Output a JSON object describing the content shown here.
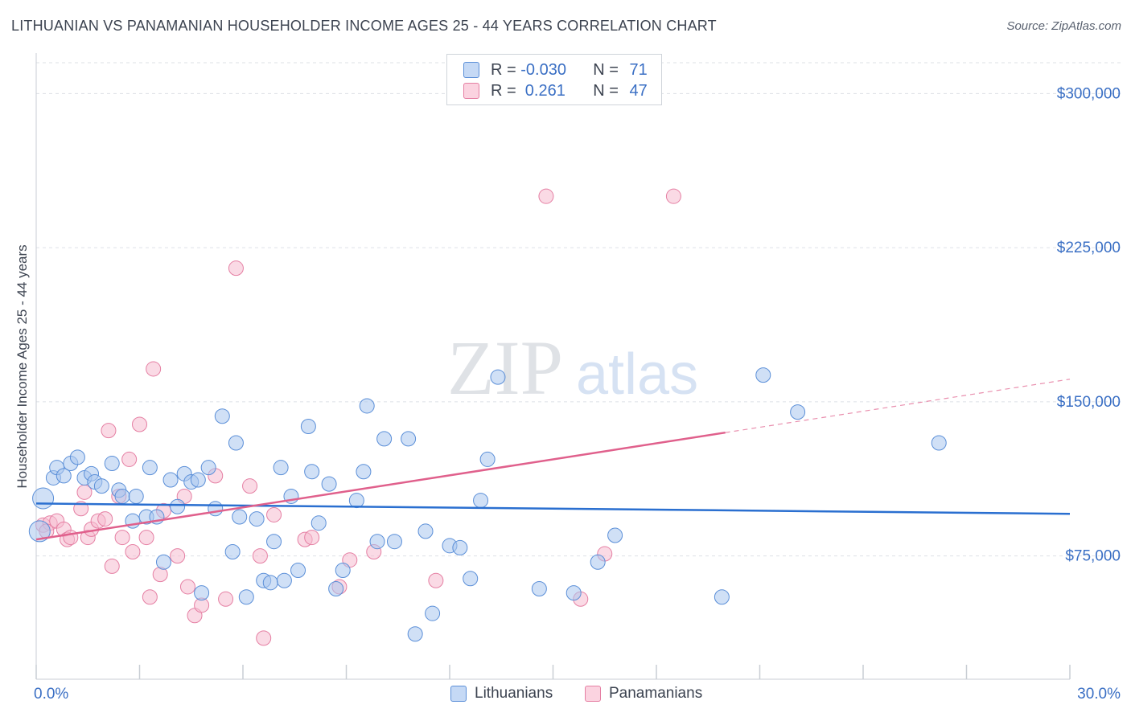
{
  "title": "LITHUANIAN VS PANAMANIAN HOUSEHOLDER INCOME AGES 25 - 44 YEARS CORRELATION CHART",
  "source": "Source: ZipAtlas.com",
  "watermark": {
    "zip": "ZIP",
    "atlas": "atlas"
  },
  "legend": {
    "rows": [
      {
        "r_label": "R = ",
        "r_value": "-0.030",
        "n_label": "N = ",
        "n_value": "71"
      },
      {
        "r_label": "R = ",
        "r_value": " 0.261",
        "n_label": "N = ",
        "n_value": "47"
      }
    ],
    "bottom": [
      "Lithuanians",
      "Panamanians"
    ]
  },
  "colors": {
    "blue_fill": "#a9c6ef",
    "blue_stroke": "#5b8fd8",
    "blue_line": "#2a6fd0",
    "pink_fill": "#f6bcd0",
    "pink_stroke": "#e57fa3",
    "pink_line": "#e0608c",
    "axis_text": "#3a6fc4",
    "grid": "#dde1e6"
  },
  "chart_data": {
    "type": "scatter",
    "title": "LITHUANIAN VS PANAMANIAN HOUSEHOLDER INCOME AGES 25 - 44 YEARS CORRELATION CHART",
    "xlabel": "",
    "ylabel": "Householder Income Ages 25 - 44 years",
    "xlim": [
      0,
      30
    ],
    "ylim": [
      15000,
      315000
    ],
    "x_tick_labels": [
      "0.0%",
      "30.0%"
    ],
    "y_ticks": [
      75000,
      150000,
      225000,
      300000
    ],
    "y_tick_labels": [
      "$75,000",
      "$150,000",
      "$225,000",
      "$300,000"
    ],
    "grid": true,
    "legend_position": "top-center",
    "series": [
      {
        "name": "Lithuanians",
        "r": -0.03,
        "n": 71,
        "trend": {
          "x": [
            0,
            30
          ],
          "y": [
            100500,
            95500
          ]
        },
        "points": [
          [
            0.1,
            87000
          ],
          [
            0.2,
            103000
          ],
          [
            0.5,
            113000
          ],
          [
            0.6,
            118000
          ],
          [
            0.8,
            114000
          ],
          [
            1.0,
            120000
          ],
          [
            1.2,
            123000
          ],
          [
            1.4,
            113000
          ],
          [
            1.6,
            115000
          ],
          [
            1.7,
            111000
          ],
          [
            1.9,
            109000
          ],
          [
            2.2,
            120000
          ],
          [
            2.4,
            107000
          ],
          [
            2.5,
            104000
          ],
          [
            2.8,
            92000
          ],
          [
            2.9,
            104000
          ],
          [
            3.2,
            94000
          ],
          [
            3.3,
            118000
          ],
          [
            3.5,
            94000
          ],
          [
            3.7,
            72000
          ],
          [
            3.9,
            112000
          ],
          [
            4.1,
            99000
          ],
          [
            4.3,
            115000
          ],
          [
            4.5,
            111000
          ],
          [
            4.7,
            112000
          ],
          [
            4.8,
            57000
          ],
          [
            5.0,
            118000
          ],
          [
            5.2,
            98000
          ],
          [
            5.4,
            143000
          ],
          [
            5.7,
            77000
          ],
          [
            5.8,
            130000
          ],
          [
            5.9,
            94000
          ],
          [
            6.1,
            55000
          ],
          [
            6.4,
            93000
          ],
          [
            6.6,
            63000
          ],
          [
            6.8,
            62000
          ],
          [
            6.9,
            82000
          ],
          [
            7.1,
            118000
          ],
          [
            7.2,
            63000
          ],
          [
            7.4,
            104000
          ],
          [
            7.6,
            68000
          ],
          [
            7.9,
            138000
          ],
          [
            8.0,
            116000
          ],
          [
            8.2,
            91000
          ],
          [
            8.5,
            110000
          ],
          [
            8.7,
            59000
          ],
          [
            8.9,
            68000
          ],
          [
            9.3,
            102000
          ],
          [
            9.5,
            116000
          ],
          [
            9.6,
            148000
          ],
          [
            9.9,
            82000
          ],
          [
            10.1,
            132000
          ],
          [
            10.4,
            82000
          ],
          [
            10.8,
            132000
          ],
          [
            11.0,
            37000
          ],
          [
            11.3,
            87000
          ],
          [
            11.5,
            47000
          ],
          [
            12.0,
            80000
          ],
          [
            12.3,
            79000
          ],
          [
            12.6,
            64000
          ],
          [
            12.9,
            102000
          ],
          [
            13.1,
            122000
          ],
          [
            13.4,
            162000
          ],
          [
            14.6,
            59000
          ],
          [
            15.6,
            57000
          ],
          [
            16.3,
            72000
          ],
          [
            16.8,
            85000
          ],
          [
            19.9,
            55000
          ],
          [
            21.1,
            163000
          ],
          [
            22.1,
            145000
          ],
          [
            26.2,
            130000
          ]
        ]
      },
      {
        "name": "Panamanians",
        "r": 0.261,
        "n": 47,
        "trend": {
          "x": [
            0,
            20
          ],
          "y": [
            83000,
            135000
          ]
        },
        "trend_dashed": {
          "x": [
            20,
            30
          ],
          "y": [
            135000,
            161000
          ]
        },
        "points": [
          [
            0.2,
            90000
          ],
          [
            0.4,
            91000
          ],
          [
            0.6,
            92000
          ],
          [
            0.8,
            88000
          ],
          [
            0.9,
            83000
          ],
          [
            1.0,
            84000
          ],
          [
            1.3,
            98000
          ],
          [
            1.4,
            106000
          ],
          [
            1.5,
            84000
          ],
          [
            1.6,
            88000
          ],
          [
            1.8,
            92000
          ],
          [
            2.0,
            93000
          ],
          [
            2.1,
            136000
          ],
          [
            2.2,
            70000
          ],
          [
            2.4,
            104000
          ],
          [
            2.5,
            84000
          ],
          [
            2.7,
            122000
          ],
          [
            2.8,
            77000
          ],
          [
            3.0,
            139000
          ],
          [
            3.2,
            84000
          ],
          [
            3.3,
            55000
          ],
          [
            3.4,
            166000
          ],
          [
            3.6,
            66000
          ],
          [
            3.7,
            97000
          ],
          [
            4.1,
            75000
          ],
          [
            4.3,
            104000
          ],
          [
            4.4,
            60000
          ],
          [
            4.6,
            46000
          ],
          [
            4.8,
            51000
          ],
          [
            5.2,
            114000
          ],
          [
            5.5,
            54000
          ],
          [
            5.8,
            215000
          ],
          [
            6.2,
            109000
          ],
          [
            6.5,
            75000
          ],
          [
            6.6,
            35000
          ],
          [
            6.9,
            95000
          ],
          [
            7.8,
            83000
          ],
          [
            8.0,
            84000
          ],
          [
            8.8,
            60000
          ],
          [
            9.1,
            73000
          ],
          [
            9.8,
            77000
          ],
          [
            11.6,
            63000
          ],
          [
            14.8,
            250000
          ],
          [
            15.8,
            54000
          ],
          [
            16.5,
            76000
          ],
          [
            18.5,
            250000
          ],
          [
            0.3,
            87000
          ]
        ]
      }
    ]
  }
}
